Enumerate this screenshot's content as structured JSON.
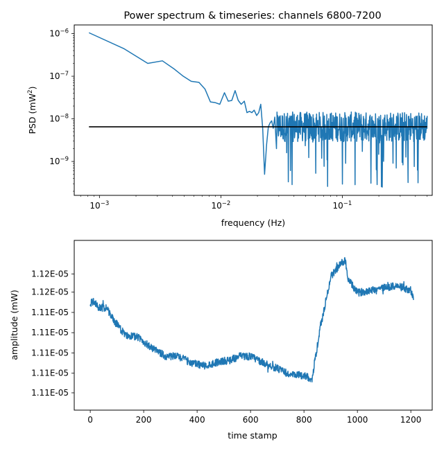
{
  "figure": {
    "title": "Power spectrum & timeseries: channels 6800-7200"
  },
  "chart_data": [
    {
      "type": "line",
      "title": "Power spectrum & timeseries: channels 6800-7200",
      "xlabel": "frequency (Hz)",
      "ylabel_prefix": "PSD (mW",
      "ylabel_sup": "2",
      "ylabel_suffix": ")",
      "xscale": "log",
      "yscale": "log",
      "xlim": [
        0.00062,
        0.55
      ],
      "ylim": [
        1.6e-10,
        1.6e-06
      ],
      "xticks": [
        {
          "value": 0.001,
          "base": "10",
          "exp": "−3"
        },
        {
          "value": 0.01,
          "base": "10",
          "exp": "−2"
        },
        {
          "value": 0.1,
          "base": "10",
          "exp": "−1"
        }
      ],
      "yticks": [
        {
          "value": 1e-09,
          "base": "10",
          "exp": "−9"
        },
        {
          "value": 1e-08,
          "base": "10",
          "exp": "−8"
        },
        {
          "value": 1e-07,
          "base": "10",
          "exp": "−7"
        },
        {
          "value": 1e-06,
          "base": "10",
          "exp": "−6"
        }
      ],
      "grid": false,
      "series": [
        {
          "color": "#1f77b4",
          "points": [
            [
              0.00082,
              1.05e-06
            ],
            [
              0.0016,
              4.4e-07
            ],
            [
              0.0025,
              2e-07
            ],
            [
              0.0033,
              2.3e-07
            ],
            [
              0.0041,
              1.5e-07
            ],
            [
              0.0049,
              1e-07
            ],
            [
              0.0057,
              7.6e-08
            ],
            [
              0.0066,
              7.2e-08
            ],
            [
              0.0074,
              5e-08
            ],
            [
              0.0082,
              2.5e-08
            ],
            [
              0.009,
              2.4e-08
            ],
            [
              0.0098,
              2.2e-08
            ],
            [
              0.0107,
              4.1e-08
            ],
            [
              0.0115,
              2.6e-08
            ],
            [
              0.0123,
              2.7e-08
            ],
            [
              0.0131,
              4.6e-08
            ],
            [
              0.0139,
              2.7e-08
            ],
            [
              0.0147,
              2.2e-08
            ],
            [
              0.0156,
              2.6e-08
            ],
            [
              0.0164,
              1.4e-08
            ],
            [
              0.0172,
              1.5e-08
            ],
            [
              0.018,
              1.4e-08
            ],
            [
              0.0188,
              1.6e-08
            ],
            [
              0.0197,
              1.2e-08
            ],
            [
              0.0205,
              1.4e-08
            ],
            [
              0.0213,
              2.2e-08
            ],
            [
              0.0221,
              6e-09
            ],
            [
              0.0229,
              5e-10
            ],
            [
              0.0238,
              2.5e-09
            ],
            [
              0.0246,
              6.5e-09
            ],
            [
              0.0254,
              8e-09
            ],
            [
              0.0262,
              9e-09
            ],
            [
              0.027,
              6e-09
            ],
            [
              0.0278,
              1.1e-08
            ],
            [
              0.0287,
              2e-09
            ]
          ],
          "noise": {
            "x_start": 0.0287,
            "x_end": 0.5,
            "points": 560,
            "center": 6.5e-09,
            "upper": 1.5e-08,
            "floor": 2.4e-10
          }
        },
        {
          "color": "#000000",
          "points": [
            [
              0.00082,
              6.5e-09
            ],
            [
              0.5,
              6.5e-09
            ]
          ]
        }
      ]
    },
    {
      "type": "line",
      "xlabel": "time stamp",
      "ylabel": "amplitude (mW)",
      "xlim": [
        -60,
        1280
      ],
      "ylim": [
        0,
        1
      ],
      "xticks": [
        0,
        200,
        400,
        600,
        800,
        1000,
        1200
      ],
      "ytick_labels": [
        "1.12E-05",
        "1.12E-05",
        "1.11E-05",
        "1.11E-05",
        "1.11E-05",
        "1.11E-05",
        "1.11E-05"
      ],
      "ytick_levels": [
        0.895,
        0.745,
        0.595,
        0.445,
        0.295,
        0.145,
        0.0
      ],
      "grid": false,
      "series": [
        {
          "color": "#1f77b4",
          "anchors": [
            [
              0,
              0.66
            ],
            [
              15,
              0.68
            ],
            [
              30,
              0.63
            ],
            [
              60,
              0.63
            ],
            [
              90,
              0.53
            ],
            [
              130,
              0.43
            ],
            [
              180,
              0.41
            ],
            [
              230,
              0.33
            ],
            [
              280,
              0.27
            ],
            [
              330,
              0.27
            ],
            [
              380,
              0.22
            ],
            [
              430,
              0.2
            ],
            [
              480,
              0.23
            ],
            [
              520,
              0.24
            ],
            [
              560,
              0.27
            ],
            [
              600,
              0.27
            ],
            [
              650,
              0.22
            ],
            [
              700,
              0.18
            ],
            [
              750,
              0.13
            ],
            [
              800,
              0.13
            ],
            [
              830,
              0.1
            ],
            [
              840,
              0.22
            ],
            [
              860,
              0.47
            ],
            [
              880,
              0.66
            ],
            [
              900,
              0.86
            ],
            [
              940,
              0.96
            ],
            [
              955,
              0.98
            ],
            [
              965,
              0.84
            ],
            [
              1000,
              0.74
            ],
            [
              1050,
              0.76
            ],
            [
              1100,
              0.78
            ],
            [
              1150,
              0.79
            ],
            [
              1200,
              0.76
            ],
            [
              1210,
              0.69
            ]
          ],
          "n_samples": 1211,
          "noise_amplitude": 0.028
        }
      ]
    }
  ]
}
